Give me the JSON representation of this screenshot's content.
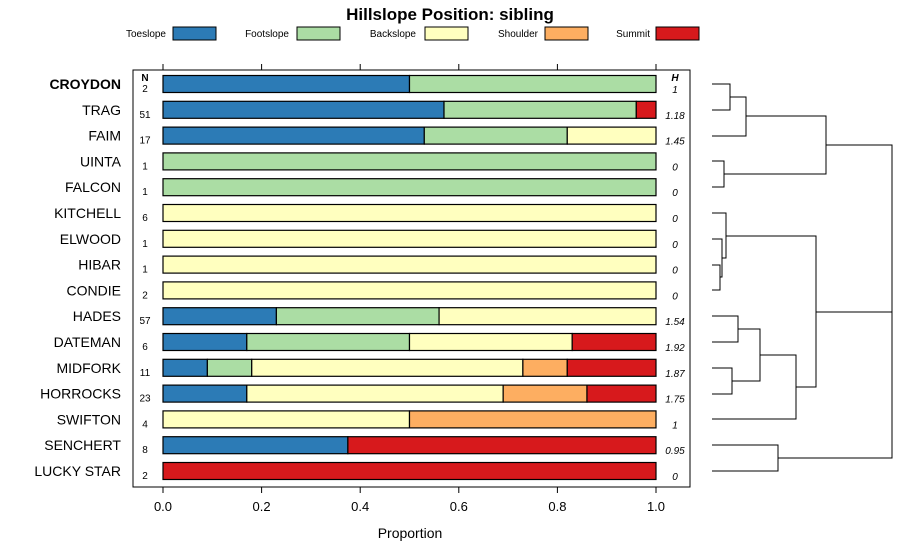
{
  "chart_data": {
    "type": "stacked-bar-horizontal",
    "title": "Hillslope Position: sibling",
    "xlabel": "Proportion",
    "xlim": [
      0,
      1
    ],
    "xticks": [
      "0.0",
      "0.2",
      "0.4",
      "0.6",
      "0.8",
      "1.0"
    ],
    "n_header": "N",
    "h_header": "H",
    "legend": [
      {
        "name": "Toeslope",
        "color": "#2c7bb6"
      },
      {
        "name": "Footslope",
        "color": "#abdda4"
      },
      {
        "name": "Backslope",
        "color": "#ffffbf"
      },
      {
        "name": "Shoulder",
        "color": "#fdae61"
      },
      {
        "name": "Summit",
        "color": "#d7191c"
      }
    ],
    "rows": [
      {
        "name": "CROYDON",
        "bold": true,
        "n": "2",
        "h": "1",
        "values": [
          0.5,
          0.5,
          0,
          0,
          0
        ]
      },
      {
        "name": "TRAG",
        "n": "51",
        "h": "1.18",
        "values": [
          0.57,
          0.39,
          0,
          0,
          0.04
        ]
      },
      {
        "name": "FAIM",
        "n": "17",
        "h": "1.45",
        "values": [
          0.53,
          0.29,
          0.18,
          0,
          0
        ]
      },
      {
        "name": "UINTA",
        "n": "1",
        "h": "0",
        "values": [
          0,
          1,
          0,
          0,
          0
        ]
      },
      {
        "name": "FALCON",
        "n": "1",
        "h": "0",
        "values": [
          0,
          1,
          0,
          0,
          0
        ]
      },
      {
        "name": "KITCHELL",
        "n": "6",
        "h": "0",
        "values": [
          0,
          0,
          1,
          0,
          0
        ]
      },
      {
        "name": "ELWOOD",
        "n": "1",
        "h": "0",
        "values": [
          0,
          0,
          1,
          0,
          0
        ]
      },
      {
        "name": "HIBAR",
        "n": "1",
        "h": "0",
        "values": [
          0,
          0,
          1,
          0,
          0
        ]
      },
      {
        "name": "CONDIE",
        "n": "2",
        "h": "0",
        "values": [
          0,
          0,
          1,
          0,
          0
        ]
      },
      {
        "name": "HADES",
        "n": "57",
        "h": "1.54",
        "values": [
          0.23,
          0.33,
          0.44,
          0,
          0
        ]
      },
      {
        "name": "DATEMAN",
        "n": "6",
        "h": "1.92",
        "values": [
          0.17,
          0.33,
          0.33,
          0,
          0.17
        ]
      },
      {
        "name": "MIDFORK",
        "n": "11",
        "h": "1.87",
        "values": [
          0.09,
          0.09,
          0.55,
          0.09,
          0.18
        ]
      },
      {
        "name": "HORROCKS",
        "n": "23",
        "h": "1.75",
        "values": [
          0.17,
          0,
          0.52,
          0.17,
          0.14
        ]
      },
      {
        "name": "SWIFTON",
        "n": "4",
        "h": "1",
        "values": [
          0,
          0,
          0.5,
          0.5,
          0
        ]
      },
      {
        "name": "SENCHERT",
        "n": "8",
        "h": "0.95",
        "values": [
          0.375,
          0,
          0,
          0,
          0.625
        ]
      },
      {
        "name": "LUCKY STAR",
        "n": "2",
        "h": "0",
        "values": [
          0,
          0,
          0,
          0,
          1
        ]
      }
    ]
  }
}
